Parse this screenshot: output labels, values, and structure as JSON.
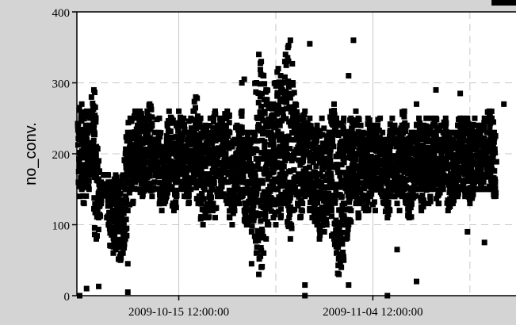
{
  "chart_data": {
    "type": "scatter",
    "title": "",
    "xlabel": "",
    "ylabel": "no_conv.",
    "ylim": [
      0,
      400
    ],
    "y_ticks": [
      {
        "value": 0,
        "label": "0"
      },
      {
        "value": 100,
        "label": "100"
      },
      {
        "value": 200,
        "label": "200"
      },
      {
        "value": 300,
        "label": "300"
      },
      {
        "value": 400,
        "label": "400"
      }
    ],
    "xlim": [
      "2009-10-05 00:00:00",
      "2009-11-19 06:00:00"
    ],
    "x_ticks": [
      {
        "value": "2009-10-15 12:00:00",
        "label": "2009-10-15 12:00:00"
      },
      {
        "value": "2009-11-04 12:00:00",
        "label": "2009-11-04 12:00:00"
      }
    ],
    "x_minor_gridlines": [
      "2009-10-25 12:00:00",
      "2009-11-14 12:00:00"
    ],
    "grid": true,
    "marker": "square",
    "marker_color": "#000000",
    "plot_background": "#ffffff",
    "page_background": "#d4d4d4",
    "grid_color": "#c8c8c8",
    "series": [
      {
        "x": [
          "2009-10-05 06:00:00",
          "2009-10-05 12:00:00",
          "2009-10-05 18:00:00",
          "2009-10-06 00:00:00",
          "2009-10-06 06:00:00",
          "2009-10-06 12:00:00",
          "2009-10-06 18:00:00",
          "2009-10-07 00:00:00",
          "2009-10-07 06:00:00",
          "2009-10-07 12:00:00",
          "2009-10-07 18:00:00",
          "2009-10-08 00:00:00",
          "2009-10-08 06:00:00",
          "2009-10-08 12:00:00",
          "2009-10-08 18:00:00",
          "2009-10-09 00:00:00",
          "2009-10-09 06:00:00",
          "2009-10-09 12:00:00",
          "2009-10-09 18:00:00",
          "2009-10-10 00:00:00",
          "2009-10-10 06:00:00",
          "2009-10-10 12:00:00",
          "2009-10-10 18:00:00",
          "2009-10-11 00:00:00",
          "2009-10-11 06:00:00",
          "2009-10-11 12:00:00",
          "2009-10-11 18:00:00",
          "2009-10-12 00:00:00",
          "2009-10-12 06:00:00",
          "2009-10-12 12:00:00",
          "2009-10-12 18:00:00",
          "2009-10-13 00:00:00",
          "2009-10-13 06:00:00",
          "2009-10-13 12:00:00",
          "2009-10-13 18:00:00",
          "2009-10-14 00:00:00",
          "2009-10-14 06:00:00",
          "2009-10-14 12:00:00",
          "2009-10-14 18:00:00",
          "2009-10-15 00:00:00",
          "2009-10-15 06:00:00",
          "2009-10-15 12:00:00",
          "2009-10-15 18:00:00",
          "2009-10-16 00:00:00",
          "2009-10-16 06:00:00",
          "2009-10-16 12:00:00",
          "2009-10-16 18:00:00",
          "2009-10-17 00:00:00",
          "2009-10-17 06:00:00",
          "2009-10-17 12:00:00",
          "2009-10-17 18:00:00",
          "2009-10-18 00:00:00",
          "2009-10-18 06:00:00",
          "2009-10-18 12:00:00",
          "2009-10-18 18:00:00",
          "2009-10-19 00:00:00",
          "2009-10-19 06:00:00",
          "2009-10-19 12:00:00",
          "2009-10-19 18:00:00",
          "2009-10-20 00:00:00",
          "2009-10-20 06:00:00",
          "2009-10-20 12:00:00",
          "2009-10-20 18:00:00",
          "2009-10-21 00:00:00",
          "2009-10-21 06:00:00",
          "2009-10-21 12:00:00",
          "2009-10-21 18:00:00",
          "2009-10-22 00:00:00",
          "2009-10-22 06:00:00",
          "2009-10-22 12:00:00",
          "2009-10-22 18:00:00",
          "2009-10-23 00:00:00",
          "2009-10-23 06:00:00",
          "2009-10-23 12:00:00",
          "2009-10-23 18:00:00",
          "2009-10-24 00:00:00",
          "2009-10-24 06:00:00",
          "2009-10-24 12:00:00",
          "2009-10-24 18:00:00",
          "2009-10-25 00:00:00",
          "2009-10-25 06:00:00",
          "2009-10-25 12:00:00",
          "2009-10-25 18:00:00",
          "2009-10-26 00:00:00",
          "2009-10-26 06:00:00",
          "2009-10-26 12:00:00",
          "2009-10-26 18:00:00",
          "2009-10-27 00:00:00",
          "2009-10-27 06:00:00",
          "2009-10-27 12:00:00",
          "2009-10-27 18:00:00",
          "2009-10-28 00:00:00",
          "2009-10-28 06:00:00",
          "2009-10-28 12:00:00",
          "2009-10-28 18:00:00",
          "2009-10-29 00:00:00",
          "2009-10-29 06:00:00",
          "2009-10-29 12:00:00",
          "2009-10-29 18:00:00",
          "2009-10-30 00:00:00",
          "2009-10-30 06:00:00",
          "2009-10-30 12:00:00",
          "2009-10-30 18:00:00",
          "2009-10-31 00:00:00",
          "2009-10-31 06:00:00",
          "2009-10-31 12:00:00",
          "2009-10-31 18:00:00",
          "2009-11-01 00:00:00",
          "2009-11-01 06:00:00",
          "2009-11-01 12:00:00",
          "2009-11-01 18:00:00",
          "2009-11-02 00:00:00",
          "2009-11-02 06:00:00",
          "2009-11-02 12:00:00",
          "2009-11-02 18:00:00",
          "2009-11-03 00:00:00",
          "2009-11-03 06:00:00",
          "2009-11-03 12:00:00",
          "2009-11-03 18:00:00",
          "2009-11-04 00:00:00",
          "2009-11-04 06:00:00",
          "2009-11-04 12:00:00",
          "2009-11-04 18:00:00",
          "2009-11-05 00:00:00",
          "2009-11-05 06:00:00",
          "2009-11-05 12:00:00",
          "2009-11-05 18:00:00",
          "2009-11-06 00:00:00",
          "2009-11-06 06:00:00",
          "2009-11-06 12:00:00",
          "2009-11-06 18:00:00",
          "2009-11-07 00:00:00",
          "2009-11-07 06:00:00",
          "2009-11-07 12:00:00",
          "2009-11-07 18:00:00",
          "2009-11-08 00:00:00",
          "2009-11-08 06:00:00",
          "2009-11-08 12:00:00",
          "2009-11-08 18:00:00",
          "2009-11-09 00:00:00",
          "2009-11-09 06:00:00",
          "2009-11-09 12:00:00",
          "2009-11-09 18:00:00",
          "2009-11-10 00:00:00",
          "2009-11-10 06:00:00",
          "2009-11-10 12:00:00",
          "2009-11-10 18:00:00",
          "2009-11-11 00:00:00",
          "2009-11-11 06:00:00",
          "2009-11-11 12:00:00",
          "2009-11-11 18:00:00",
          "2009-11-12 00:00:00",
          "2009-11-12 06:00:00",
          "2009-11-12 12:00:00",
          "2009-11-12 18:00:00",
          "2009-11-13 00:00:00",
          "2009-11-13 06:00:00",
          "2009-11-13 12:00:00",
          "2009-11-13 18:00:00",
          "2009-11-14 00:00:00",
          "2009-11-14 06:00:00",
          "2009-11-14 12:00:00",
          "2009-11-14 18:00:00",
          "2009-11-15 00:00:00",
          "2009-11-15 06:00:00",
          "2009-11-15 12:00:00",
          "2009-11-15 18:00:00",
          "2009-11-16 00:00:00",
          "2009-11-16 06:00:00",
          "2009-11-16 12:00:00",
          "2009-11-16 18:00:00",
          "2009-11-17 00:00:00",
          "2009-11-17 06:00:00",
          "2009-11-17 12:00:00",
          "2009-11-17 18:00:00",
          "2009-11-18 00:00:00",
          "2009-11-18 06:00:00",
          "2009-11-18 12:00:00",
          "2009-11-18 18:00:00",
          "2009-11-19 00:00:00"
        ],
        "y_min": [
          140,
          150,
          130,
          160,
          150,
          180,
          170,
          80,
          110,
          130,
          150,
          170,
          100,
          70,
          60,
          65,
          70,
          50,
          60,
          80,
          120,
          150,
          130,
          160,
          150,
          170,
          140,
          160,
          150,
          155,
          140,
          160,
          170,
          150,
          120,
          130,
          140,
          160,
          150,
          120,
          140,
          160,
          150,
          150,
          140,
          130,
          150,
          160,
          170,
          130,
          140,
          100,
          120,
          110,
          130,
          120,
          110,
          140,
          150,
          140,
          160,
          130,
          110,
          100,
          120,
          130,
          130,
          140,
          120,
          100,
          110,
          90,
          110,
          60,
          30,
          40,
          60,
          80,
          100,
          130,
          110,
          100,
          130,
          110,
          130,
          140,
          100,
          80,
          120,
          150,
          130,
          110,
          130,
          140,
          150,
          120,
          110,
          120,
          100,
          80,
          110,
          90,
          100,
          130,
          120,
          80,
          60,
          30,
          40,
          50,
          80,
          100,
          120,
          140,
          130,
          110,
          130,
          140,
          120,
          120,
          140,
          150,
          120,
          150,
          160,
          140,
          130,
          110,
          120,
          150,
          140,
          130,
          120,
          140,
          150,
          130,
          110,
          130,
          140,
          150,
          150,
          120,
          150,
          150,
          130,
          150,
          150,
          160,
          130,
          150,
          150,
          160,
          120,
          130,
          130,
          140,
          140,
          150,
          150,
          140,
          150,
          130,
          140,
          150,
          150,
          150,
          150,
          150,
          150,
          150,
          150,
          140
        ],
        "y_max": [
          265,
          270,
          250,
          260,
          240,
          280,
          290,
          210,
          190,
          160,
          150,
          170,
          160,
          160,
          160,
          170,
          150,
          160,
          170,
          200,
          230,
          250,
          230,
          260,
          240,
          260,
          240,
          250,
          260,
          270,
          240,
          230,
          220,
          250,
          210,
          200,
          220,
          260,
          250,
          210,
          240,
          260,
          250,
          250,
          230,
          220,
          250,
          260,
          280,
          220,
          250,
          230,
          240,
          220,
          250,
          230,
          260,
          240,
          250,
          240,
          240,
          260,
          230,
          210,
          220,
          240,
          230,
          260,
          220,
          210,
          230,
          220,
          230,
          300,
          340,
          330,
          310,
          290,
          270,
          230,
          270,
          300,
          320,
          310,
          300,
          340,
          350,
          360,
          300,
          270,
          250,
          240,
          250,
          260,
          240,
          250,
          230,
          220,
          240,
          230,
          250,
          210,
          220,
          230,
          260,
          270,
          250,
          230,
          240,
          250,
          230,
          220,
          250,
          240,
          260,
          250,
          240,
          230,
          220,
          250,
          230,
          240,
          230,
          240,
          250,
          230,
          220,
          210,
          230,
          250,
          240,
          220,
          230,
          240,
          260,
          240,
          220,
          230,
          230,
          240,
          250,
          220,
          240,
          250,
          230,
          250,
          230,
          250,
          220,
          240,
          230,
          250,
          220,
          230,
          220,
          230,
          240,
          250,
          250,
          240,
          250,
          220,
          240,
          250,
          240,
          230,
          240,
          250,
          230,
          260,
          250,
          230
        ]
      }
    ],
    "notable_points": [
      {
        "x": "2009-10-05 00:00:00",
        "y": 0
      },
      {
        "x": "2009-10-06 00:00:00",
        "y": 10
      },
      {
        "x": "2009-10-07 06:00:00",
        "y": 13
      },
      {
        "x": "2009-10-10 06:00:00",
        "y": 5
      },
      {
        "x": "2009-10-10 06:00:00",
        "y": 45
      },
      {
        "x": "2009-10-23 00:00:00",
        "y": 45
      },
      {
        "x": "2009-10-22 00:00:00",
        "y": 300
      },
      {
        "x": "2009-10-22 06:00:00",
        "y": 305
      },
      {
        "x": "2009-10-28 12:00:00",
        "y": 0
      },
      {
        "x": "2009-10-28 12:00:00",
        "y": 15
      },
      {
        "x": "2009-10-29 00:00:00",
        "y": 355
      },
      {
        "x": "2009-10-31 18:00:00",
        "y": 85
      },
      {
        "x": "2009-11-02 00:00:00",
        "y": 15
      },
      {
        "x": "2009-11-02 00:00:00",
        "y": 310
      },
      {
        "x": "2009-11-02 12:00:00",
        "y": 360
      },
      {
        "x": "2009-11-06 00:00:00",
        "y": 0
      },
      {
        "x": "2009-11-07 00:00:00",
        "y": 65
      },
      {
        "x": "2009-11-09 00:00:00",
        "y": 20
      },
      {
        "x": "2009-11-09 00:00:00",
        "y": 270
      },
      {
        "x": "2009-11-11 00:00:00",
        "y": 290
      },
      {
        "x": "2009-11-13 12:00:00",
        "y": 285
      },
      {
        "x": "2009-11-14 06:00:00",
        "y": 90
      },
      {
        "x": "2009-11-16 00:00:00",
        "y": 75
      },
      {
        "x": "2009-11-18 00:00:00",
        "y": 270
      }
    ]
  }
}
